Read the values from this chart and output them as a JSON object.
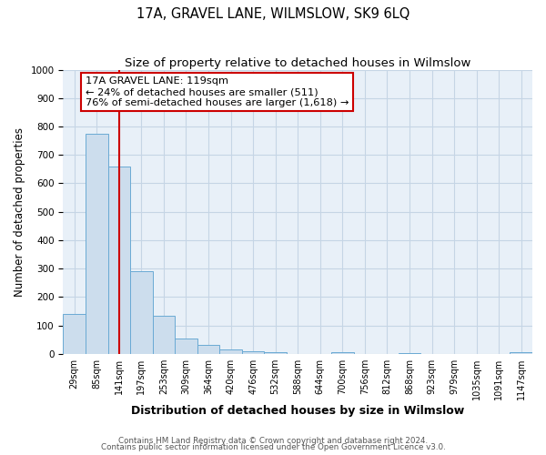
{
  "title": "17A, GRAVEL LANE, WILMSLOW, SK9 6LQ",
  "subtitle": "Size of property relative to detached houses in Wilmslow",
  "xlabel": "Distribution of detached houses by size in Wilmslow",
  "ylabel": "Number of detached properties",
  "bar_labels": [
    "29sqm",
    "85sqm",
    "141sqm",
    "197sqm",
    "253sqm",
    "309sqm",
    "364sqm",
    "420sqm",
    "476sqm",
    "532sqm",
    "588sqm",
    "644sqm",
    "700sqm",
    "756sqm",
    "812sqm",
    "868sqm",
    "923sqm",
    "979sqm",
    "1035sqm",
    "1091sqm",
    "1147sqm"
  ],
  "bar_values": [
    140,
    775,
    660,
    290,
    135,
    55,
    30,
    15,
    8,
    4,
    0,
    0,
    5,
    0,
    0,
    3,
    0,
    0,
    0,
    0,
    5
  ],
  "bar_color": "#ccdded",
  "bar_edge_color": "#6aaad4",
  "vline_color": "#cc0000",
  "ylim": [
    0,
    1000
  ],
  "annotation_text": "17A GRAVEL LANE: 119sqm\n← 24% of detached houses are smaller (511)\n76% of semi-detached houses are larger (1,618) →",
  "annotation_box_color": "#ffffff",
  "annotation_box_edge": "#cc0000",
  "footer_line1": "Contains HM Land Registry data © Crown copyright and database right 2024.",
  "footer_line2": "Contains public sector information licensed under the Open Government Licence v3.0.",
  "title_fontsize": 10.5,
  "subtitle_fontsize": 9.5,
  "tick_fontsize": 7.0,
  "ylabel_fontsize": 8.5,
  "xlabel_fontsize": 9.0,
  "bg_color": "#e8f0f8",
  "grid_color": "#c5d5e5"
}
